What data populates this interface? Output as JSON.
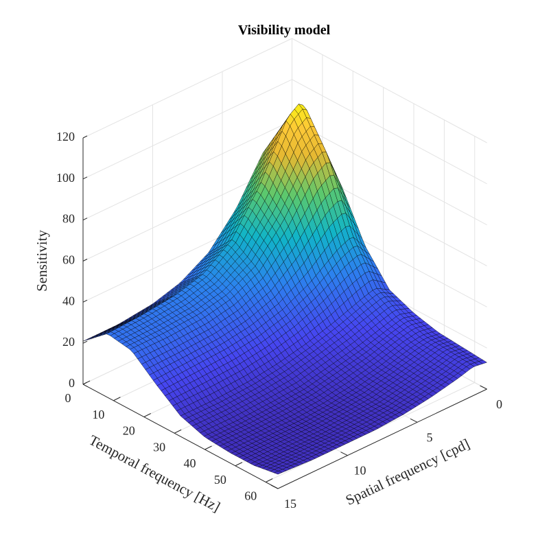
{
  "chart_data": {
    "type": "surface",
    "title": "Visibility model",
    "xlabel": "Temporal frequency [Hz]",
    "ylabel": "Spatial frequency [cpd]",
    "zlabel": "Sensitivity",
    "xlim": [
      0,
      64
    ],
    "ylim": [
      0,
      15
    ],
    "zlim": [
      0,
      120
    ],
    "xticks": [
      "0",
      "10",
      "20",
      "30",
      "40",
      "50",
      "60"
    ],
    "yticks": [
      "0",
      "5",
      "10",
      "15"
    ],
    "zticks": [
      "0",
      "20",
      "40",
      "60",
      "80",
      "100",
      "120"
    ],
    "grid": true,
    "colormap": "parula",
    "x": [
      0,
      8,
      16,
      24,
      32,
      40,
      48,
      56,
      64
    ],
    "y": [
      0,
      1,
      2,
      4,
      6,
      8,
      10,
      12.5,
      15
    ],
    "z": [
      [
        55,
        75,
        72,
        50,
        35,
        27,
        23,
        21,
        21
      ],
      [
        75,
        100,
        95,
        68,
        48,
        38,
        34,
        32,
        31
      ],
      [
        62,
        80,
        75,
        55,
        40,
        33,
        30,
        29,
        29
      ],
      [
        38,
        47,
        44,
        34,
        27,
        23,
        21,
        20,
        19
      ],
      [
        23,
        27,
        25,
        20,
        16,
        13,
        11,
        10,
        10
      ],
      [
        18,
        20,
        18,
        14,
        11,
        8,
        7,
        6,
        6
      ],
      [
        15,
        16,
        15,
        11,
        8,
        6,
        5,
        5,
        5
      ],
      [
        14,
        15,
        13,
        10,
        7,
        6,
        5,
        5,
        5
      ],
      [
        13,
        14,
        12,
        9,
        7,
        6,
        6,
        6,
        7
      ]
    ],
    "colors": {
      "edge": "#000000",
      "grid": "#e3e3e3",
      "axis": "#262626"
    }
  }
}
